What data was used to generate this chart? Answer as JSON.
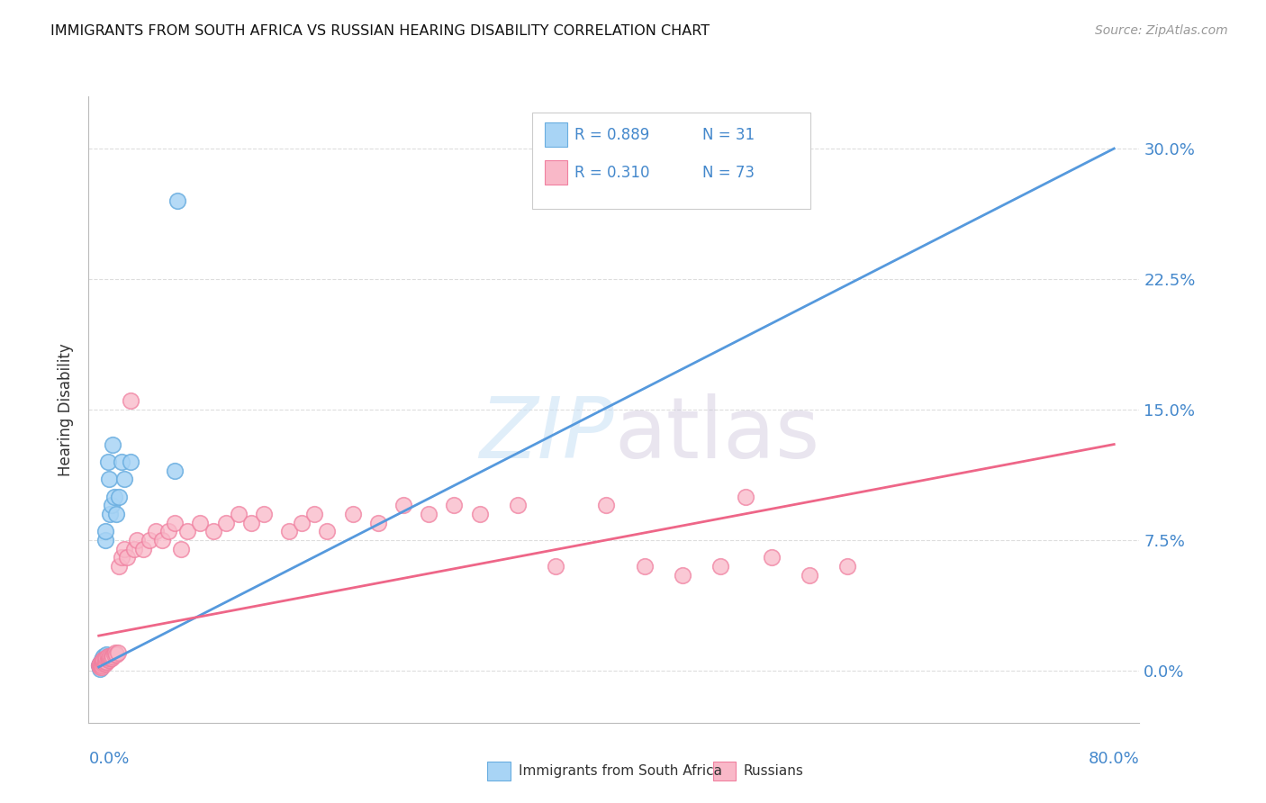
{
  "title": "IMMIGRANTS FROM SOUTH AFRICA VS RUSSIAN HEARING DISABILITY CORRELATION CHART",
  "source": "Source: ZipAtlas.com",
  "ylabel": "Hearing Disability",
  "yticks_labels": [
    "0.0%",
    "7.5%",
    "15.0%",
    "22.5%",
    "30.0%"
  ],
  "ytick_vals": [
    0.0,
    0.075,
    0.15,
    0.225,
    0.3
  ],
  "xlim": [
    -0.008,
    0.82
  ],
  "ylim": [
    -0.03,
    0.33
  ],
  "legend_r1": "R = 0.889",
  "legend_n1": "N = 31",
  "legend_r2": "R = 0.310",
  "legend_n2": "N = 73",
  "color_blue_fill": "#A8D4F5",
  "color_blue_edge": "#6AAEE0",
  "color_pink_fill": "#F9B8C8",
  "color_pink_edge": "#F080A0",
  "color_blue_text": "#4488CC",
  "trendline_blue": "#5599DD",
  "trendline_pink": "#EE6688",
  "sa_x": [
    0.0005,
    0.001,
    0.001,
    0.0015,
    0.002,
    0.002,
    0.0025,
    0.003,
    0.003,
    0.004,
    0.004,
    0.004,
    0.005,
    0.005,
    0.005,
    0.006,
    0.006,
    0.007,
    0.007,
    0.008,
    0.009,
    0.01,
    0.011,
    0.012,
    0.014,
    0.016,
    0.018,
    0.02,
    0.025,
    0.06,
    0.062
  ],
  "sa_y": [
    0.003,
    0.001,
    0.004,
    0.003,
    0.005,
    0.006,
    0.005,
    0.004,
    0.007,
    0.005,
    0.007,
    0.008,
    0.006,
    0.075,
    0.08,
    0.007,
    0.009,
    0.008,
    0.12,
    0.11,
    0.09,
    0.095,
    0.13,
    0.1,
    0.09,
    0.1,
    0.12,
    0.11,
    0.12,
    0.115,
    0.27
  ],
  "ru_x": [
    0.0005,
    0.001,
    0.001,
    0.001,
    0.0015,
    0.002,
    0.002,
    0.002,
    0.0025,
    0.003,
    0.003,
    0.003,
    0.004,
    0.004,
    0.005,
    0.005,
    0.005,
    0.006,
    0.006,
    0.007,
    0.007,
    0.008,
    0.008,
    0.009,
    0.009,
    0.01,
    0.01,
    0.011,
    0.012,
    0.013,
    0.014,
    0.015,
    0.016,
    0.018,
    0.02,
    0.022,
    0.025,
    0.028,
    0.03,
    0.035,
    0.04,
    0.045,
    0.05,
    0.055,
    0.06,
    0.065,
    0.07,
    0.08,
    0.09,
    0.1,
    0.11,
    0.12,
    0.13,
    0.15,
    0.16,
    0.17,
    0.18,
    0.2,
    0.22,
    0.24,
    0.26,
    0.28,
    0.3,
    0.33,
    0.36,
    0.4,
    0.43,
    0.46,
    0.49,
    0.51,
    0.53,
    0.56,
    0.59
  ],
  "ru_y": [
    0.003,
    0.002,
    0.003,
    0.004,
    0.003,
    0.002,
    0.004,
    0.005,
    0.003,
    0.004,
    0.005,
    0.006,
    0.005,
    0.006,
    0.004,
    0.005,
    0.007,
    0.005,
    0.007,
    0.006,
    0.008,
    0.006,
    0.007,
    0.007,
    0.008,
    0.008,
    0.007,
    0.008,
    0.009,
    0.01,
    0.009,
    0.01,
    0.06,
    0.065,
    0.07,
    0.065,
    0.155,
    0.07,
    0.075,
    0.07,
    0.075,
    0.08,
    0.075,
    0.08,
    0.085,
    0.07,
    0.08,
    0.085,
    0.08,
    0.085,
    0.09,
    0.085,
    0.09,
    0.08,
    0.085,
    0.09,
    0.08,
    0.09,
    0.085,
    0.095,
    0.09,
    0.095,
    0.09,
    0.095,
    0.06,
    0.095,
    0.06,
    0.055,
    0.06,
    0.1,
    0.065,
    0.055,
    0.06
  ],
  "trendline_sa_x0": 0.0,
  "trendline_sa_y0": 0.002,
  "trendline_sa_x1": 0.8,
  "trendline_sa_y1": 0.3,
  "trendline_ru_x0": 0.0,
  "trendline_ru_y0": 0.02,
  "trendline_ru_x1": 0.8,
  "trendline_ru_y1": 0.13
}
